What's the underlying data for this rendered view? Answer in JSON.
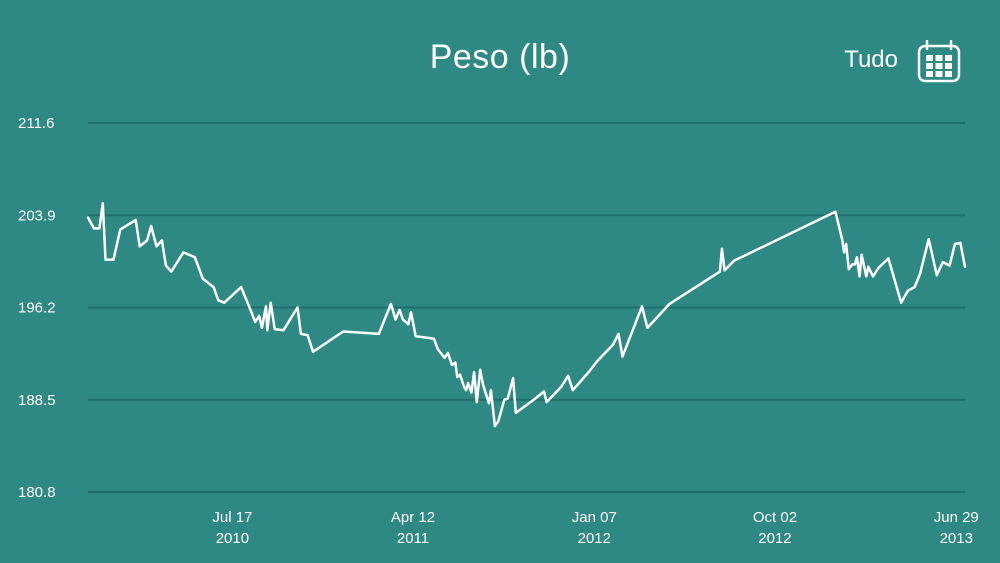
{
  "header": {
    "title": "Peso (lb)",
    "range_label": "Tudo"
  },
  "icons": {
    "calendar": "calendar-icon"
  },
  "colors": {
    "background": "#2e8884",
    "grid": "#1f6f6c",
    "line": "#ffffff"
  },
  "chart_data": {
    "type": "line",
    "title": "Peso (lb)",
    "xlabel": "",
    "ylabel": "",
    "ylim": [
      180.8,
      211.6
    ],
    "yticks": [
      "211.6",
      "203.9",
      "196.2",
      "188.5",
      "180.8"
    ],
    "xlim": [
      "2009-12-14",
      "2013-07-12"
    ],
    "xticks": [
      {
        "date": "2010-07-17",
        "line1": "Jul 17",
        "line2": "2010"
      },
      {
        "date": "2011-04-12",
        "line1": "Apr 12",
        "line2": "2011"
      },
      {
        "date": "2012-01-07",
        "line1": "Jan 07",
        "line2": "2012"
      },
      {
        "date": "2012-10-02",
        "line1": "Oct 02",
        "line2": "2012"
      },
      {
        "date": "2013-06-29",
        "line1": "Jun 29",
        "line2": "2013"
      }
    ],
    "grid": true,
    "series": [
      {
        "points": [
          [
            "2009-12-14",
            203.7
          ],
          [
            "2009-12-23",
            202.8
          ],
          [
            "2009-12-31",
            202.8
          ],
          [
            "2010-01-05",
            204.9
          ],
          [
            "2010-01-09",
            200.2
          ],
          [
            "2010-01-21",
            200.2
          ],
          [
            "2010-01-31",
            202.7
          ],
          [
            "2010-02-23",
            203.5
          ],
          [
            "2010-03-01",
            201.3
          ],
          [
            "2010-03-12",
            201.8
          ],
          [
            "2010-03-18",
            203.0
          ],
          [
            "2010-03-26",
            201.3
          ],
          [
            "2010-04-03",
            201.8
          ],
          [
            "2010-04-09",
            199.7
          ],
          [
            "2010-04-17",
            199.2
          ],
          [
            "2010-05-05",
            200.8
          ],
          [
            "2010-05-22",
            200.4
          ],
          [
            "2010-06-03",
            198.6
          ],
          [
            "2010-06-19",
            197.9
          ],
          [
            "2010-06-26",
            196.8
          ],
          [
            "2010-07-05",
            196.6
          ],
          [
            "2010-07-30",
            197.9
          ],
          [
            "2010-08-13",
            196.0
          ],
          [
            "2010-08-20",
            195.0
          ],
          [
            "2010-08-26",
            195.5
          ],
          [
            "2010-08-30",
            194.5
          ],
          [
            "2010-09-05",
            196.3
          ],
          [
            "2010-09-07",
            194.3
          ],
          [
            "2010-09-12",
            196.6
          ],
          [
            "2010-09-18",
            194.4
          ],
          [
            "2010-10-01",
            194.3
          ],
          [
            "2010-10-22",
            196.2
          ],
          [
            "2010-10-27",
            194.0
          ],
          [
            "2010-11-06",
            193.9
          ],
          [
            "2010-11-14",
            192.5
          ],
          [
            "2010-12-29",
            194.2
          ],
          [
            "2011-02-20",
            194.0
          ],
          [
            "2011-03-10",
            196.5
          ],
          [
            "2011-03-17",
            195.2
          ],
          [
            "2011-03-23",
            196.0
          ],
          [
            "2011-03-28",
            195.2
          ],
          [
            "2011-04-05",
            194.8
          ],
          [
            "2011-04-09",
            195.8
          ],
          [
            "2011-04-16",
            193.8
          ],
          [
            "2011-05-13",
            193.6
          ],
          [
            "2011-05-19",
            192.7
          ],
          [
            "2011-05-29",
            192.0
          ],
          [
            "2011-06-03",
            192.4
          ],
          [
            "2011-06-09",
            191.4
          ],
          [
            "2011-06-14",
            191.6
          ],
          [
            "2011-06-17",
            190.4
          ],
          [
            "2011-06-21",
            190.6
          ],
          [
            "2011-06-27",
            189.6
          ],
          [
            "2011-06-30",
            189.3
          ],
          [
            "2011-07-03",
            189.9
          ],
          [
            "2011-07-08",
            189.1
          ],
          [
            "2011-07-12",
            190.8
          ],
          [
            "2011-07-16",
            188.3
          ],
          [
            "2011-07-21",
            191.0
          ],
          [
            "2011-07-25",
            189.8
          ],
          [
            "2011-08-03",
            188.2
          ],
          [
            "2011-08-06",
            189.3
          ],
          [
            "2011-08-12",
            186.3
          ],
          [
            "2011-08-17",
            186.7
          ],
          [
            "2011-08-26",
            188.5
          ],
          [
            "2011-08-31",
            188.6
          ],
          [
            "2011-09-08",
            190.3
          ],
          [
            "2011-09-12",
            187.4
          ],
          [
            "2011-10-11",
            188.6
          ],
          [
            "2011-10-24",
            189.2
          ],
          [
            "2011-10-28",
            188.3
          ],
          [
            "2011-11-19",
            189.6
          ],
          [
            "2011-11-29",
            190.5
          ],
          [
            "2011-12-06",
            189.3
          ],
          [
            "2011-12-31",
            190.9
          ],
          [
            "2012-01-11",
            191.7
          ],
          [
            "2012-02-04",
            193.1
          ],
          [
            "2012-02-12",
            194.0
          ],
          [
            "2012-02-18",
            192.1
          ],
          [
            "2012-03-18",
            196.3
          ],
          [
            "2012-03-26",
            194.5
          ],
          [
            "2012-04-28",
            196.5
          ],
          [
            "2012-07-12",
            199.2
          ],
          [
            "2012-07-15",
            201.1
          ],
          [
            "2012-07-19",
            199.3
          ],
          [
            "2012-08-02",
            200.1
          ],
          [
            "2012-12-31",
            204.2
          ],
          [
            "2013-01-10",
            201.9
          ],
          [
            "2013-01-13",
            200.8
          ],
          [
            "2013-01-16",
            201.5
          ],
          [
            "2013-01-20",
            199.4
          ],
          [
            "2013-01-25",
            199.8
          ],
          [
            "2013-01-29",
            199.8
          ],
          [
            "2013-02-01",
            200.4
          ],
          [
            "2013-02-05",
            198.8
          ],
          [
            "2013-02-08",
            200.6
          ],
          [
            "2013-02-15",
            198.8
          ],
          [
            "2013-02-18",
            199.6
          ],
          [
            "2013-02-25",
            198.8
          ],
          [
            "2013-03-05",
            199.5
          ],
          [
            "2013-03-20",
            200.3
          ],
          [
            "2013-04-08",
            196.6
          ],
          [
            "2013-04-18",
            197.6
          ],
          [
            "2013-04-28",
            197.9
          ],
          [
            "2013-05-06",
            199.0
          ],
          [
            "2013-05-19",
            201.9
          ],
          [
            "2013-05-31",
            198.9
          ],
          [
            "2013-06-09",
            200.0
          ],
          [
            "2013-06-19",
            199.7
          ],
          [
            "2013-06-27",
            201.5
          ],
          [
            "2013-07-05",
            201.6
          ],
          [
            "2013-07-12",
            199.6
          ]
        ]
      }
    ]
  }
}
